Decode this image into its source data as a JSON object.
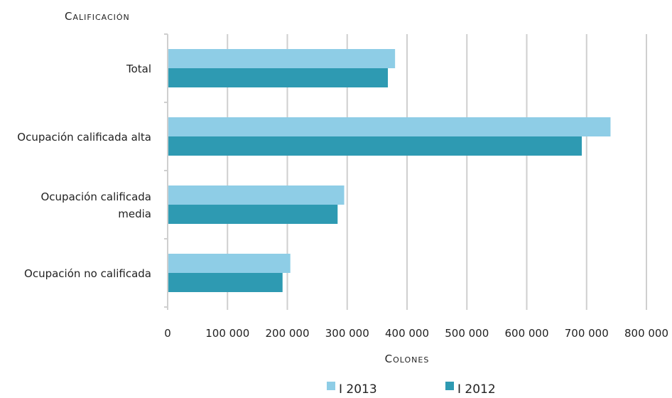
{
  "chart_data": {
    "type": "bar",
    "orientation": "horizontal",
    "ylabel": "Calificación",
    "xlabel": "Colones",
    "categories": [
      "Total",
      "Ocupación calificada alta",
      "Ocupación calificada media",
      "Ocupación no calificada"
    ],
    "category_label_lines": [
      [
        "Total"
      ],
      [
        "Ocupación calificada alta"
      ],
      [
        "Ocupación calificada",
        "media"
      ],
      [
        "Ocupación no calificada"
      ]
    ],
    "series": [
      {
        "name": "I 2013",
        "color": "#8ecde6",
        "values": [
          380000,
          740000,
          295000,
          205000
        ]
      },
      {
        "name": "I 2012",
        "color": "#2e9ab2",
        "values": [
          368000,
          692000,
          284000,
          192000
        ]
      }
    ],
    "xlim": [
      0,
      800000
    ],
    "x_ticks": [
      0,
      100000,
      200000,
      300000,
      400000,
      500000,
      600000,
      700000,
      800000
    ],
    "x_tick_labels": [
      "0",
      "100 000",
      "200 000",
      "300 000",
      "400 000",
      "500 000",
      "600 000",
      "700 000",
      "800 000"
    ],
    "grid": true,
    "legend_position": "bottom"
  }
}
